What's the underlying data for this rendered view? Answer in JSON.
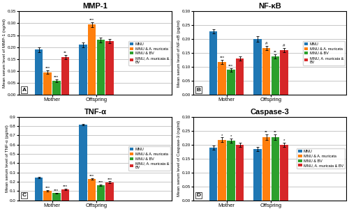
{
  "chart_data": [
    {
      "type": "bar",
      "title": "MMP-1",
      "y_label": "Mean serum level of MMP-1 (ng/ml)",
      "panel_label": "A",
      "categories": [
        "Mother",
        "Offspring"
      ],
      "series": [
        {
          "name": "MNU",
          "values": [
            0.19,
            0.21
          ],
          "errors": [
            0.01,
            0.01
          ]
        },
        {
          "name": "MNU & A. muricata",
          "values": [
            0.095,
            0.295
          ],
          "errors": [
            0.008,
            0.01
          ]
        },
        {
          "name": "MNU & BV",
          "values": [
            0.06,
            0.23
          ],
          "errors": [
            0.006,
            0.01
          ]
        },
        {
          "name": "MNU, A. muricata &\nBV",
          "values": [
            0.158,
            0.225
          ],
          "errors": [
            0.01,
            0.008
          ]
        }
      ],
      "annotations": [
        {
          "text": "***",
          "category": "Mother",
          "series": "MNU & A. muricata"
        },
        {
          "text": "***",
          "category": "Mother",
          "series": "MNU & BV"
        },
        {
          "text": "**",
          "category": "Mother",
          "series": "MNU, A. muricata &\nBV"
        },
        {
          "text": "***",
          "category": "Offspring",
          "series": "MNU & A. muricata"
        }
      ],
      "ylim": [
        0,
        0.35
      ],
      "yticks": [
        {
          "value": 0,
          "label": "0.00"
        },
        0.05,
        {
          "value": 0.1,
          "label": "0.10"
        },
        0.15,
        {
          "value": 0.2,
          "label": "0.20"
        },
        0.25,
        {
          "value": 0.3,
          "label": "0.30"
        },
        0.35
      ],
      "grid": true,
      "legend": "center right"
    },
    {
      "type": "bar",
      "title": "NF-κB",
      "y_label": "Mean serum level of NF-κB (pg/ml)",
      "panel_label": "B",
      "categories": [
        "Mother",
        "Offspring"
      ],
      "series": [
        {
          "name": "MNU",
          "values": [
            0.228,
            0.2
          ],
          "errors": [
            0.008,
            0.01
          ]
        },
        {
          "name": "MNU & A. muricata",
          "values": [
            0.118,
            0.168
          ],
          "errors": [
            0.007,
            0.008
          ]
        },
        {
          "name": "MNU & BV",
          "values": [
            0.09,
            0.138
          ],
          "errors": [
            0.006,
            0.008
          ]
        },
        {
          "name": "MNU, A. muricata &\nBV",
          "values": [
            0.13,
            0.16
          ],
          "errors": [
            0.008,
            0.008
          ]
        }
      ],
      "annotations": [
        {
          "text": "***",
          "category": "Mother",
          "series": "MNU & A. muricata"
        },
        {
          "text": "***",
          "category": "Mother",
          "series": "MNU & BV"
        },
        {
          "text": "#",
          "category": "Offspring",
          "series": "MNU & A. muricata"
        },
        {
          "text": "**",
          "category": "Offspring",
          "series": "MNU & BV"
        },
        {
          "text": "#",
          "category": "Offspring",
          "series": "MNU, A. muricata &\nBV"
        }
      ],
      "ylim": [
        0,
        0.3
      ],
      "yticks": [
        {
          "value": 0,
          "label": "0.00"
        },
        0.05,
        {
          "value": 0.1,
          "label": "0.10"
        },
        0.15,
        {
          "value": 0.2,
          "label": "0.20"
        },
        0.25,
        {
          "value": 0.3,
          "label": "0.30"
        }
      ],
      "grid": true,
      "legend": "center right"
    },
    {
      "type": "bar",
      "title": "TNF-α",
      "y_label": "Mean serum level of TNF-α (pg/ml)",
      "panel_label": "C",
      "categories": [
        "Mother",
        "Offspring"
      ],
      "series": [
        {
          "name": "MNU",
          "values": [
            0.245,
            0.815
          ],
          "errors": [
            0.01,
            0.01
          ]
        },
        {
          "name": "MNU & A. muricata",
          "values": [
            0.105,
            0.23
          ],
          "errors": [
            0.007,
            0.01
          ]
        },
        {
          "name": "MNU & BV",
          "values": [
            0.078,
            0.165
          ],
          "errors": [
            0.005,
            0.008
          ]
        },
        {
          "name": "MNU, A. muricata &\nBV",
          "values": [
            0.118,
            0.195
          ],
          "errors": [
            0.008,
            0.01
          ]
        }
      ],
      "annotations": [
        {
          "text": "***",
          "category": "Mother",
          "series": "MNU & A. muricata"
        },
        {
          "text": "***",
          "category": "Mother",
          "series": "MNU & BV"
        },
        {
          "text": "***",
          "category": "Mother",
          "series": "MNU, A. muricata &\nBV"
        },
        {
          "text": "***",
          "category": "Offspring",
          "series": "MNU & A. muricata"
        },
        {
          "text": "***",
          "category": "Offspring",
          "series": "MNU & BV"
        },
        {
          "text": "***",
          "category": "Offspring",
          "series": "MNU, A. muricata &\nBV"
        }
      ],
      "ylim": [
        0,
        0.9
      ],
      "yticks": [
        {
          "value": 0,
          "label": "0.0"
        },
        0.1,
        0.2,
        0.3,
        0.4,
        0.5,
        0.6,
        0.7,
        0.8,
        0.9
      ],
      "grid": true,
      "legend": "center right"
    },
    {
      "type": "bar",
      "title": "Caspase-3",
      "y_label": "Mean serum level of Caspase-3 (ng/ml)",
      "panel_label": "D",
      "categories": [
        "Mother",
        "Offspring"
      ],
      "series": [
        {
          "name": "MNU",
          "values": [
            0.19,
            0.185
          ],
          "errors": [
            0.008,
            0.007
          ]
        },
        {
          "name": "MNU & A. muricata",
          "values": [
            0.218,
            0.228
          ],
          "errors": [
            0.008,
            0.01
          ]
        },
        {
          "name": "MNU & BV",
          "values": [
            0.215,
            0.228
          ],
          "errors": [
            0.008,
            0.01
          ]
        },
        {
          "name": "MNU, A. muricata & BV",
          "values": [
            0.2,
            0.2
          ],
          "errors": [
            0.007,
            0.008
          ]
        }
      ],
      "annotations": [
        {
          "text": "*",
          "category": "Mother",
          "series": "MNU & A. muricata"
        },
        {
          "text": "*",
          "category": "Mother",
          "series": "MNU & BV"
        },
        {
          "text": "**",
          "category": "Offspring",
          "series": "MNU & A. muricata"
        },
        {
          "text": "**",
          "category": "Offspring",
          "series": "MNU & BV"
        },
        {
          "text": "*",
          "category": "Offspring",
          "series": "MNU, A. muricata & BV"
        }
      ],
      "ylim": [
        0,
        0.3
      ],
      "yticks": [
        {
          "value": 0,
          "label": "0.00"
        },
        0.05,
        {
          "value": 0.1,
          "label": "0.10"
        },
        0.15,
        {
          "value": 0.2,
          "label": "0.20"
        },
        0.25,
        {
          "value": 0.3,
          "label": "0.30"
        }
      ],
      "grid": true,
      "legend": "center right"
    }
  ]
}
